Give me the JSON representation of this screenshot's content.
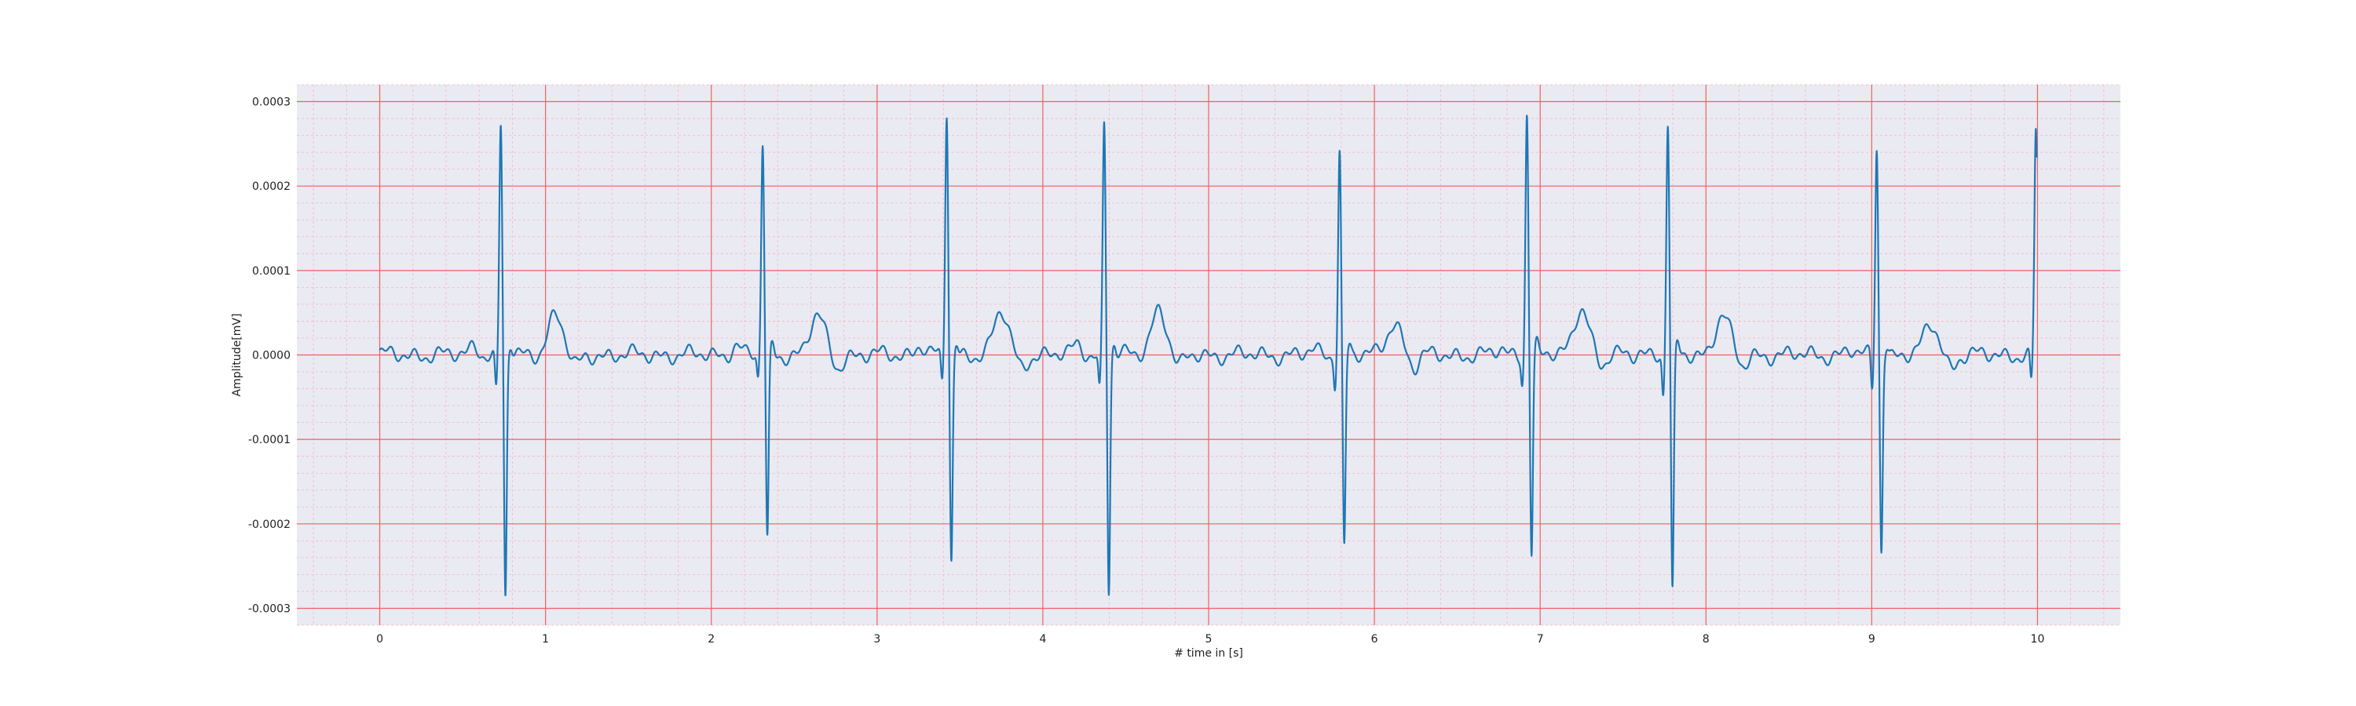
{
  "chart_data": {
    "type": "line",
    "title": "",
    "xlabel": "# time in [s]",
    "ylabel": "Amplitude[mV]",
    "xlim": [
      -0.5,
      10.5
    ],
    "ylim": [
      -0.00032,
      0.00032
    ],
    "x_ticks": [
      0,
      1,
      2,
      3,
      4,
      5,
      6,
      7,
      8,
      9,
      10
    ],
    "x_tick_labels": [
      "0",
      "1",
      "2",
      "3",
      "4",
      "5",
      "6",
      "7",
      "8",
      "9",
      "10"
    ],
    "y_ticks": [
      0.0003,
      0.0002,
      0.0001,
      0.0,
      -0.0001,
      -0.0002,
      -0.0003
    ],
    "y_tick_labels": [
      "0.0003",
      "0.0002",
      "0.0001",
      "0.0000",
      "-0.0001",
      "-0.0002",
      "-0.0003"
    ],
    "grid": true,
    "minor_grid": true,
    "legend": "none",
    "colors": {
      "plot_background": "#eaeaf2",
      "major_grid": "#f06060",
      "minor_grid": "#f4b8c0",
      "line": "#1f77b4"
    },
    "series": [
      {
        "beats": [
          {
            "r_time": 0.73,
            "r_peak": 0.000272,
            "s_trough": -0.00029,
            "q": -4.5e-05,
            "t_amp": 4.8e-05,
            "p_amp": 4.5e-05
          },
          {
            "r_time": 2.31,
            "r_peak": 0.00025,
            "s_trough": -0.000222,
            "q": -2.8e-05,
            "t_amp": 4.6e-05,
            "p_amp": 4.5e-05
          },
          {
            "r_time": 3.42,
            "r_peak": 0.000288,
            "s_trough": -0.000245,
            "q": -3.5e-05,
            "t_amp": 5e-05,
            "p_amp": 4.8e-05
          },
          {
            "r_time": 4.37,
            "r_peak": 0.000275,
            "s_trough": -0.00028,
            "q": -4e-05,
            "t_amp": 5.5e-05,
            "p_amp": 5e-05
          },
          {
            "r_time": 5.79,
            "r_peak": 0.000243,
            "s_trough": -0.000228,
            "q": -3.2e-05,
            "t_amp": 3.8e-05,
            "p_amp": 2e-05
          },
          {
            "r_time": 6.92,
            "r_peak": 0.00029,
            "s_trough": -0.000235,
            "q": -3e-05,
            "t_amp": 5.8e-05,
            "p_amp": 2.5e-05
          },
          {
            "r_time": 7.77,
            "r_peak": 0.000273,
            "s_trough": -0.000287,
            "q": -4.8e-05,
            "t_amp": 4.7e-05,
            "p_amp": 2e-05
          },
          {
            "r_time": 9.03,
            "r_peak": 0.000247,
            "s_trough": -0.00023,
            "q": -4.2e-05,
            "t_amp": 3.5e-05,
            "p_amp": 2e-05
          },
          {
            "r_time": 9.99,
            "r_peak": 0.000265,
            "s_trough": 0.0,
            "q": -3.5e-05,
            "t_amp": 0.0,
            "p_amp": 0.0
          }
        ]
      }
    ]
  }
}
